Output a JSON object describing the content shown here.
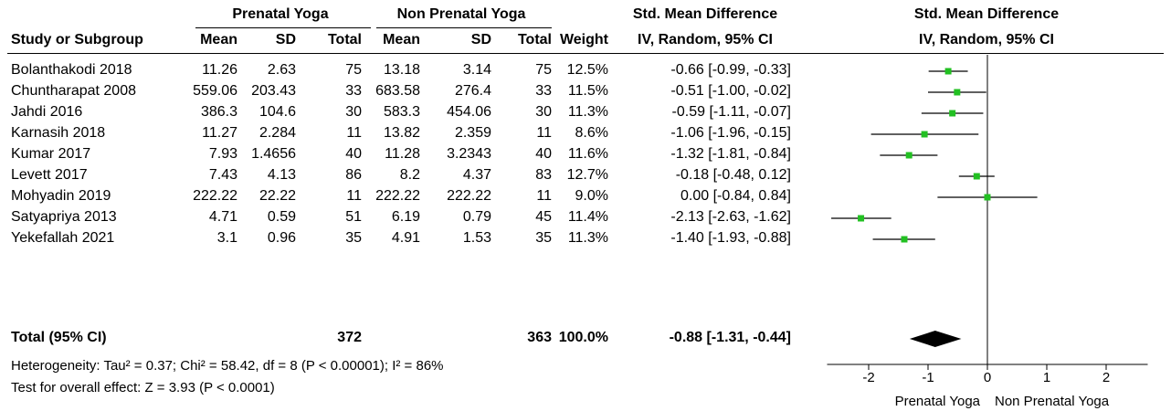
{
  "chart_data": {
    "type": "forest",
    "group_headers": {
      "experimental": "Prenatal Yoga",
      "control": "Non Prenatal Yoga",
      "effect_table": "Std. Mean Difference",
      "effect_plot": "Std. Mean Difference"
    },
    "columns": {
      "study": "Study or Subgroup",
      "mean1": "Mean",
      "sd1": "SD",
      "total1": "Total",
      "mean2": "Mean",
      "sd2": "SD",
      "total2": "Total",
      "weight": "Weight",
      "effect_table": "IV, Random, 95% CI",
      "effect_plot": "IV, Random, 95% CI"
    },
    "studies": [
      {
        "name": "Bolanthakodi 2018",
        "mean1": "11.26",
        "sd1": "2.63",
        "total1": "75",
        "mean2": "13.18",
        "sd2": "3.14",
        "total2": "75",
        "weight": "12.5%",
        "ci_text": "-0.66 [-0.99, -0.33]",
        "est": -0.66,
        "lo": -0.99,
        "hi": -0.33
      },
      {
        "name": "Chuntharapat 2008",
        "mean1": "559.06",
        "sd1": "203.43",
        "total1": "33",
        "mean2": "683.58",
        "sd2": "276.4",
        "total2": "33",
        "weight": "11.5%",
        "ci_text": "-0.51 [-1.00, -0.02]",
        "est": -0.51,
        "lo": -1.0,
        "hi": -0.02
      },
      {
        "name": "Jahdi 2016",
        "mean1": "386.3",
        "sd1": "104.6",
        "total1": "30",
        "mean2": "583.3",
        "sd2": "454.06",
        "total2": "30",
        "weight": "11.3%",
        "ci_text": "-0.59 [-1.11, -0.07]",
        "est": -0.59,
        "lo": -1.11,
        "hi": -0.07
      },
      {
        "name": "Karnasih 2018",
        "mean1": "11.27",
        "sd1": "2.284",
        "total1": "11",
        "mean2": "13.82",
        "sd2": "2.359",
        "total2": "11",
        "weight": "8.6%",
        "ci_text": "-1.06 [-1.96, -0.15]",
        "est": -1.06,
        "lo": -1.96,
        "hi": -0.15
      },
      {
        "name": "Kumar 2017",
        "mean1": "7.93",
        "sd1": "1.4656",
        "total1": "40",
        "mean2": "11.28",
        "sd2": "3.2343",
        "total2": "40",
        "weight": "11.6%",
        "ci_text": "-1.32 [-1.81, -0.84]",
        "est": -1.32,
        "lo": -1.81,
        "hi": -0.84
      },
      {
        "name": "Levett 2017",
        "mean1": "7.43",
        "sd1": "4.13",
        "total1": "86",
        "mean2": "8.2",
        "sd2": "4.37",
        "total2": "83",
        "weight": "12.7%",
        "ci_text": "-0.18 [-0.48, 0.12]",
        "est": -0.18,
        "lo": -0.48,
        "hi": 0.12
      },
      {
        "name": "Mohyadin 2019",
        "mean1": "222.22",
        "sd1": "22.22",
        "total1": "11",
        "mean2": "222.22",
        "sd2": "222.22",
        "total2": "11",
        "weight": "9.0%",
        "ci_text": "0.00 [-0.84, 0.84]",
        "est": 0.0,
        "lo": -0.84,
        "hi": 0.84
      },
      {
        "name": "Satyapriya 2013",
        "mean1": "4.71",
        "sd1": "0.59",
        "total1": "51",
        "mean2": "6.19",
        "sd2": "0.79",
        "total2": "45",
        "weight": "11.4%",
        "ci_text": "-2.13 [-2.63, -1.62]",
        "est": -2.13,
        "lo": -2.63,
        "hi": -1.62
      },
      {
        "name": "Yekefallah 2021",
        "mean1": "3.1",
        "sd1": "0.96",
        "total1": "35",
        "mean2": "4.91",
        "sd2": "1.53",
        "total2": "35",
        "weight": "11.3%",
        "ci_text": "-1.40 [-1.93, -0.88]",
        "est": -1.4,
        "lo": -1.93,
        "hi": -0.88
      }
    ],
    "total": {
      "name": "Total (95% CI)",
      "total1": "372",
      "total2": "363",
      "weight": "100.0%",
      "ci_text": "-0.88 [-1.31, -0.44]",
      "est": -0.88,
      "lo": -1.31,
      "hi": -0.44
    },
    "heterogeneity": "Heterogeneity: Tau² = 0.37; Chi² = 58.42, df = 8 (P < 0.00001); I² = 86%",
    "overall_effect": "Test for overall effect: Z = 3.93 (P < 0.0001)",
    "x_ticks": [
      -2,
      -1,
      0,
      1,
      2
    ],
    "x_tick_labels": [
      "-2",
      "-1",
      "0",
      "1",
      "2"
    ],
    "xlim": [
      -2.7,
      2.7
    ],
    "favours_left": "Prenatal Yoga",
    "favours_right": "Non Prenatal Yoga",
    "marker_color": "#22c022",
    "diamond_color": "#000000"
  }
}
